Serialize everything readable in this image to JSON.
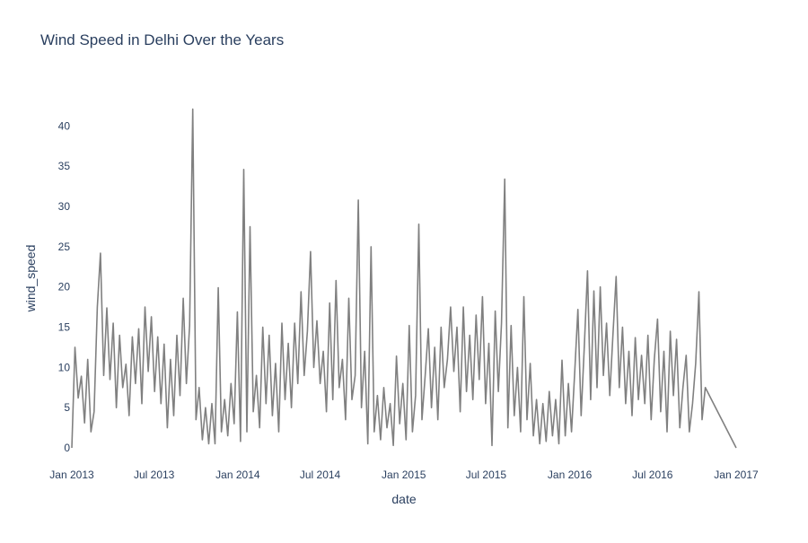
{
  "chart_data": {
    "type": "line",
    "title": "Wind Speed in Delhi Over the Years",
    "xlabel": "date",
    "ylabel": "wind_speed",
    "x_range": [
      "2013-01-01",
      "2017-01-01"
    ],
    "ylim": [
      0,
      42.5
    ],
    "grid": false,
    "line_color": "#808080",
    "x_ticks": [
      {
        "date": "2013-01-01",
        "label": "Jan 2013"
      },
      {
        "date": "2013-07-01",
        "label": "Jul 2013"
      },
      {
        "date": "2014-01-01",
        "label": "Jan 2014"
      },
      {
        "date": "2014-07-01",
        "label": "Jul 2014"
      },
      {
        "date": "2015-01-01",
        "label": "Jan 2015"
      },
      {
        "date": "2015-07-01",
        "label": "Jul 2015"
      },
      {
        "date": "2016-01-01",
        "label": "Jan 2016"
      },
      {
        "date": "2016-07-01",
        "label": "Jul 2016"
      },
      {
        "date": "2017-01-01",
        "label": "Jan 2017"
      }
    ],
    "y_ticks": [
      0,
      5,
      10,
      15,
      20,
      25,
      30,
      35,
      40
    ],
    "series": [
      {
        "name": "wind_speed",
        "x_start": "2013-01-01",
        "step_days": 7,
        "values": [
          0.0,
          12.5,
          6.2,
          8.9,
          3.1,
          11.0,
          2.0,
          4.5,
          17.5,
          24.2,
          9.0,
          17.4,
          8.5,
          15.5,
          5.0,
          14.0,
          7.5,
          10.4,
          4.0,
          13.8,
          8.0,
          14.8,
          5.5,
          17.5,
          9.5,
          16.3,
          7.0,
          13.8,
          5.5,
          12.9,
          2.5,
          11.0,
          4.0,
          14.0,
          6.5,
          18.6,
          8.0,
          15.2,
          42.1,
          3.5,
          7.5,
          1.0,
          5.0,
          0.5,
          5.5,
          0.5,
          19.9,
          2.0,
          6.0,
          1.5,
          8.0,
          3.0,
          16.9,
          0.8,
          34.6,
          2.0,
          27.5,
          4.5,
          9.0,
          2.5,
          15.0,
          5.5,
          14.0,
          4.0,
          10.5,
          2.0,
          15.5,
          6.0,
          13.0,
          5.0,
          15.5,
          8.0,
          19.4,
          9.0,
          14.5,
          24.4,
          10.0,
          15.8,
          8.0,
          12.0,
          4.5,
          18.0,
          6.0,
          20.8,
          7.5,
          11.0,
          3.5,
          18.6,
          6.0,
          9.0,
          30.8,
          5.0,
          12.0,
          0.5,
          25.0,
          2.0,
          6.5,
          1.0,
          7.5,
          2.5,
          5.5,
          0.3,
          11.4,
          3.0,
          8.0,
          1.0,
          15.2,
          2.0,
          6.5,
          27.8,
          3.5,
          9.0,
          14.8,
          5.0,
          12.5,
          3.5,
          15.0,
          7.5,
          11.0,
          17.5,
          9.5,
          15.0,
          4.5,
          17.5,
          7.0,
          14.0,
          6.0,
          16.5,
          8.5,
          18.8,
          5.5,
          13.0,
          0.3,
          17.0,
          7.0,
          15.5,
          33.4,
          2.5,
          15.2,
          4.0,
          10.0,
          2.0,
          18.8,
          3.5,
          10.5,
          1.5,
          6.0,
          0.5,
          5.5,
          0.8,
          7.0,
          1.5,
          6.0,
          0.5,
          10.9,
          1.5,
          8.0,
          2.0,
          9.5,
          17.2,
          4.0,
          12.5,
          22.0,
          6.0,
          19.5,
          7.5,
          20.0,
          9.0,
          15.5,
          6.5,
          14.0,
          21.3,
          7.5,
          15.0,
          5.5,
          12.0,
          4.0,
          13.7,
          6.0,
          11.5,
          5.5,
          14.0,
          3.5,
          11.0,
          16.0,
          4.5,
          12.0,
          2.0,
          14.5,
          6.5,
          13.5,
          2.5,
          7.5,
          11.5,
          2.0,
          5.5,
          10.5,
          19.4,
          3.5,
          7.5,
          0.0
        ]
      }
    ]
  }
}
